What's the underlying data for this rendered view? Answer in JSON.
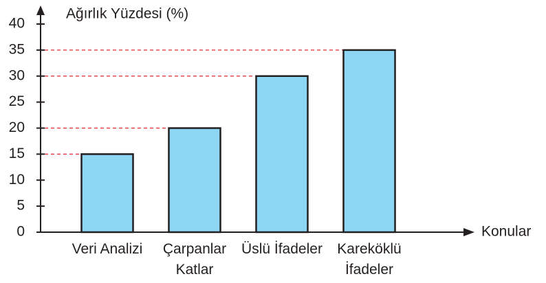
{
  "chart_data": {
    "type": "bar",
    "y_label": "Ağırlık Yüzdesi (%)",
    "x_label": "Konular",
    "categories": [
      "Veri Analizi",
      "Çarpanlar Katlar",
      "Üslü İfadeler",
      "Kareköklü İfadeler"
    ],
    "values": [
      15,
      20,
      30,
      35
    ],
    "color": "#8dd7f5",
    "guide_color": "#e0282e",
    "ylim": [
      0,
      40
    ],
    "yticks": [
      0,
      5,
      10,
      15,
      20,
      25,
      30,
      35,
      40
    ]
  }
}
